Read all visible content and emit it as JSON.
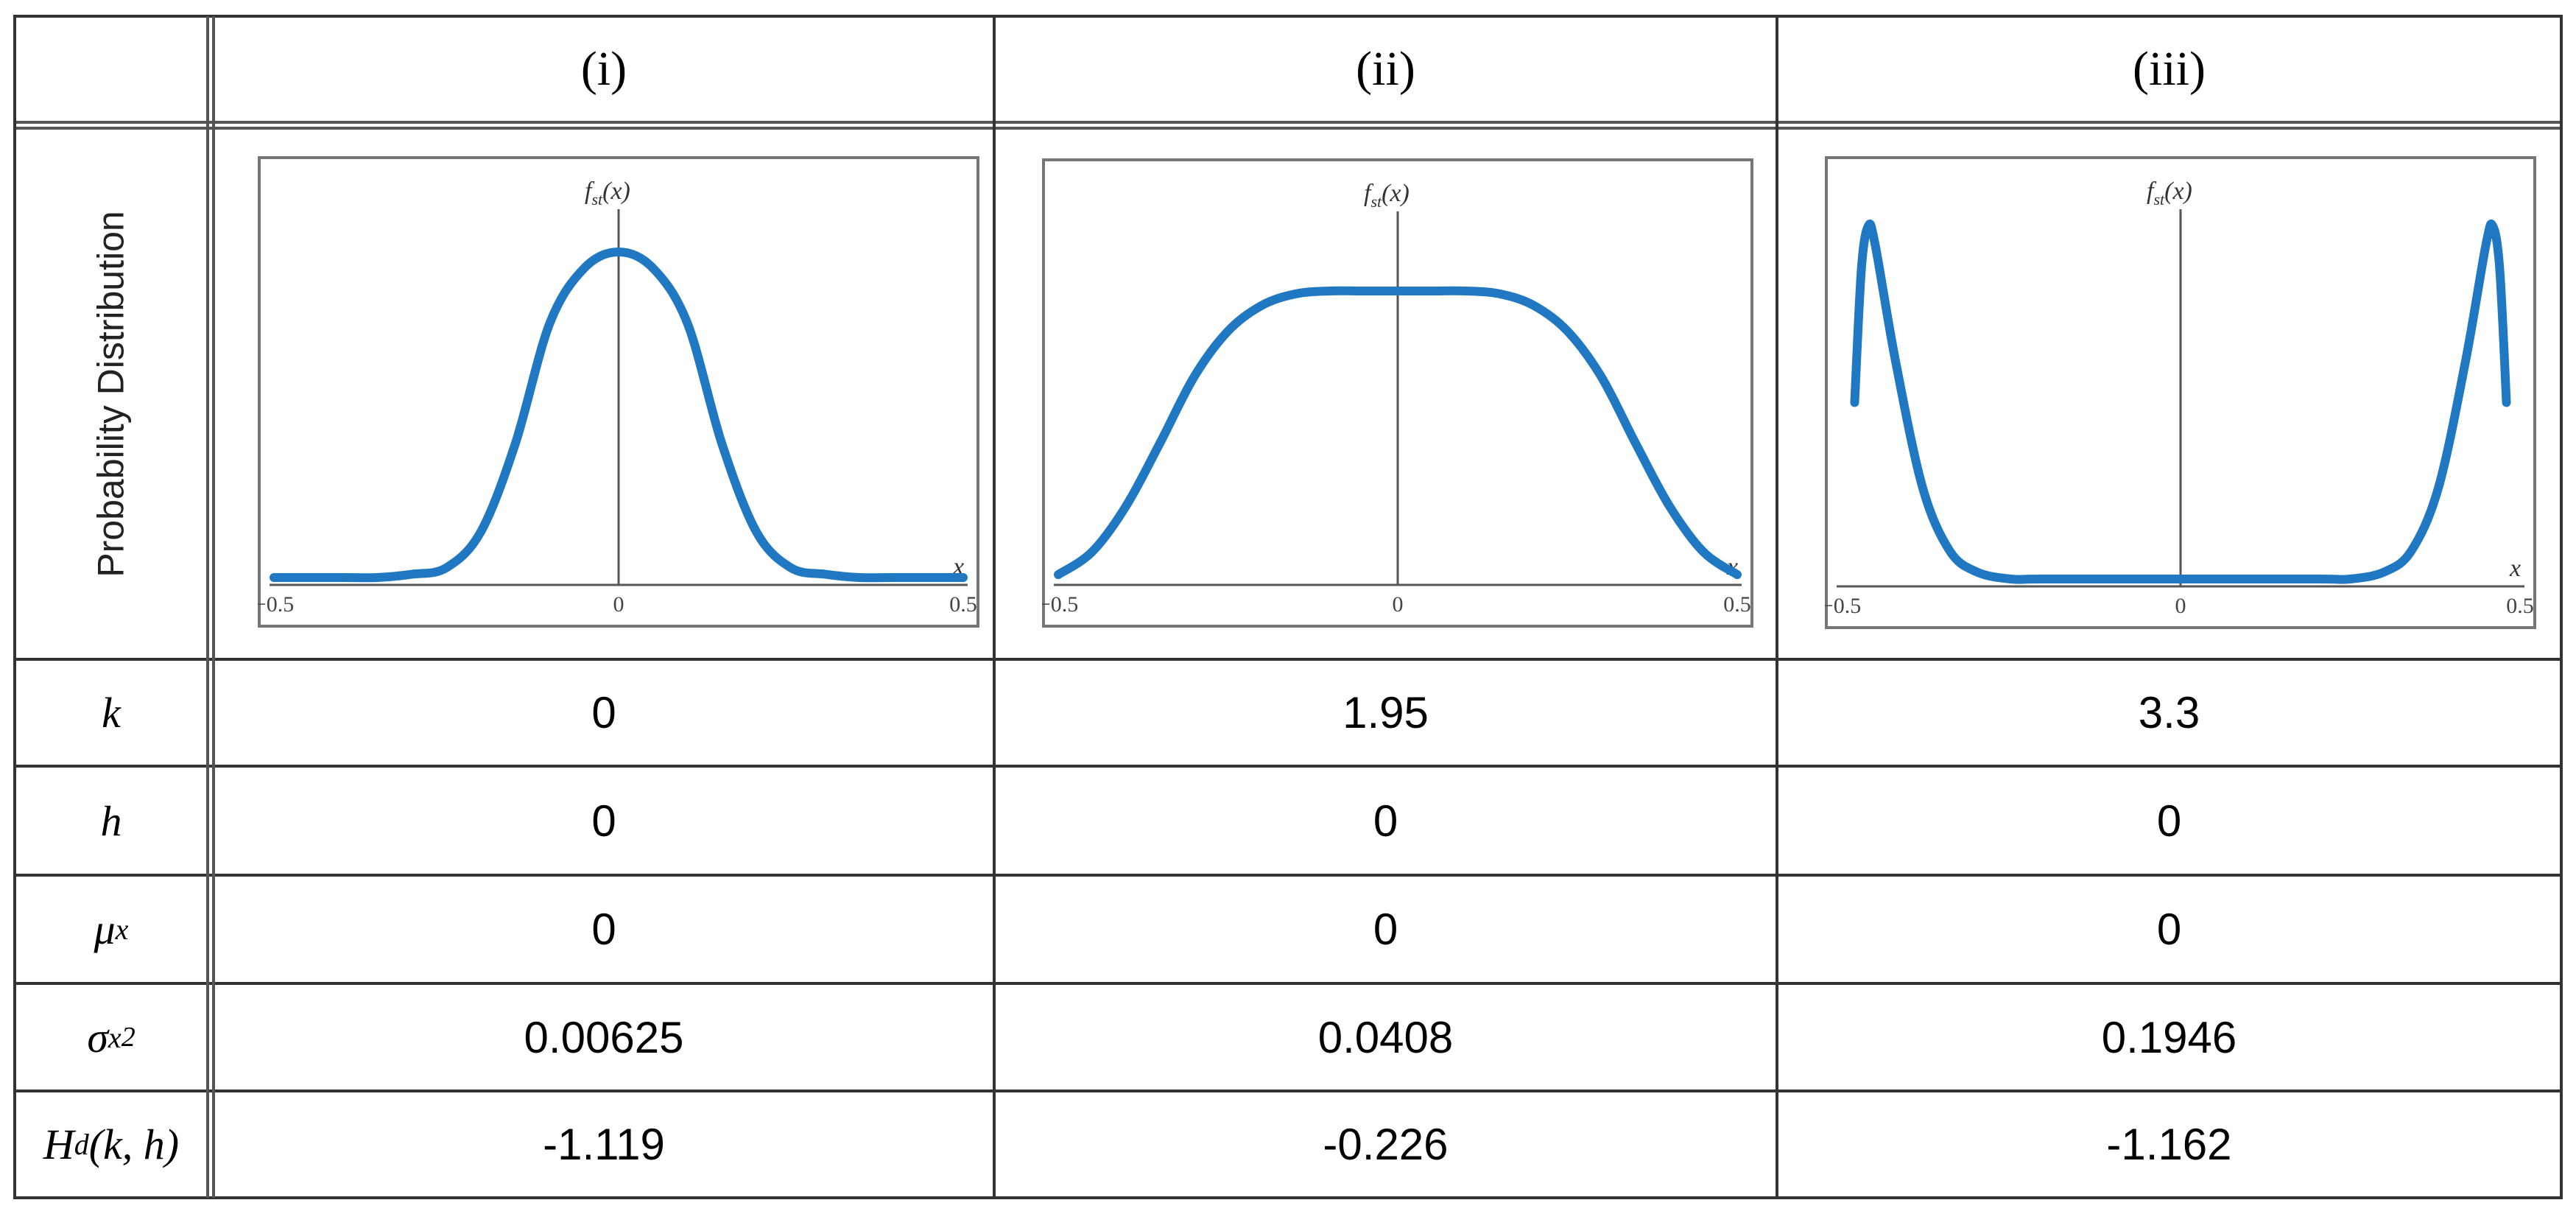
{
  "columns": [
    {
      "header": "(i)"
    },
    {
      "header": "(ii)"
    },
    {
      "header": "(iii)"
    }
  ],
  "row_labels": {
    "distribution": "Probability Distribution",
    "k": {
      "base": "k",
      "sub": "",
      "sup": ""
    },
    "h": {
      "base": "h",
      "sub": "",
      "sup": ""
    },
    "mu": {
      "base": "μ",
      "sub": "x",
      "sup": ""
    },
    "sigma": {
      "base": "σ",
      "sub": "x",
      "sup": "2"
    },
    "H": {
      "base": "H",
      "sub": "d",
      "args": "(k, h)"
    }
  },
  "rows": {
    "k": [
      "0",
      "1.95",
      "3.3"
    ],
    "h": [
      "0",
      "0",
      "0"
    ],
    "mu": [
      "0",
      "0",
      "0"
    ],
    "sigma": [
      "0.00625",
      "0.0408",
      "0.1946"
    ],
    "H": [
      "-1.119",
      "-0.226",
      "-1.162"
    ]
  },
  "chart_data": [
    {
      "type": "line",
      "ylabel": "f_st(x)",
      "xlabel": "x",
      "x_ticks": [
        "−0.5",
        "0",
        "0.5"
      ],
      "xlim": [
        -0.5,
        0.5
      ],
      "series": [
        {
          "x": [
            -0.5,
            -0.45,
            -0.4,
            -0.35,
            -0.3,
            -0.25,
            -0.2,
            -0.15,
            -0.1,
            -0.05,
            0,
            0.05,
            0.1,
            0.15,
            0.2,
            0.25,
            0.3,
            0.35,
            0.4,
            0.45,
            0.5
          ],
          "values": [
            0.0,
            0.0,
            0.0,
            0.0,
            0.01,
            0.03,
            0.14,
            0.41,
            0.78,
            0.95,
            1.0,
            0.95,
            0.78,
            0.41,
            0.14,
            0.03,
            0.01,
            0.0,
            0.0,
            0.0,
            0.0
          ]
        }
      ],
      "color": "#1f78c1"
    },
    {
      "type": "line",
      "ylabel": "f_st(x)",
      "xlabel": "x",
      "x_ticks": [
        "−0.5",
        "0",
        "0.5"
      ],
      "xlim": [
        -0.5,
        0.5
      ],
      "series": [
        {
          "x": [
            -0.5,
            -0.45,
            -0.4,
            -0.35,
            -0.3,
            -0.25,
            -0.2,
            -0.15,
            -0.1,
            -0.05,
            0,
            0.05,
            0.1,
            0.15,
            0.2,
            0.25,
            0.3,
            0.35,
            0.4,
            0.45,
            0.5
          ],
          "values": [
            0.01,
            0.09,
            0.25,
            0.47,
            0.7,
            0.86,
            0.95,
            0.99,
            1.0,
            1.0,
            1.0,
            1.0,
            1.0,
            0.99,
            0.95,
            0.86,
            0.7,
            0.47,
            0.25,
            0.09,
            0.01
          ]
        }
      ],
      "color": "#1f78c1"
    },
    {
      "type": "line",
      "ylabel": "f_st(x)",
      "xlabel": "x",
      "x_ticks": [
        "−0.5",
        "0",
        "0.5"
      ],
      "xlim": [
        -0.5,
        0.5
      ],
      "series": [
        {
          "x": [
            -0.48,
            -0.47,
            -0.46,
            -0.45,
            -0.42,
            -0.38,
            -0.34,
            -0.3,
            -0.25,
            -0.2,
            0,
            0.2,
            0.25,
            0.3,
            0.34,
            0.38,
            0.42,
            0.45,
            0.46,
            0.47,
            0.48
          ],
          "values": [
            0.5,
            0.88,
            1.0,
            0.95,
            0.62,
            0.26,
            0.08,
            0.02,
            0.0,
            0.0,
            0.0,
            0.0,
            0.0,
            0.02,
            0.08,
            0.26,
            0.62,
            0.95,
            1.0,
            0.88,
            0.5
          ]
        }
      ],
      "color": "#1f78c1"
    }
  ]
}
